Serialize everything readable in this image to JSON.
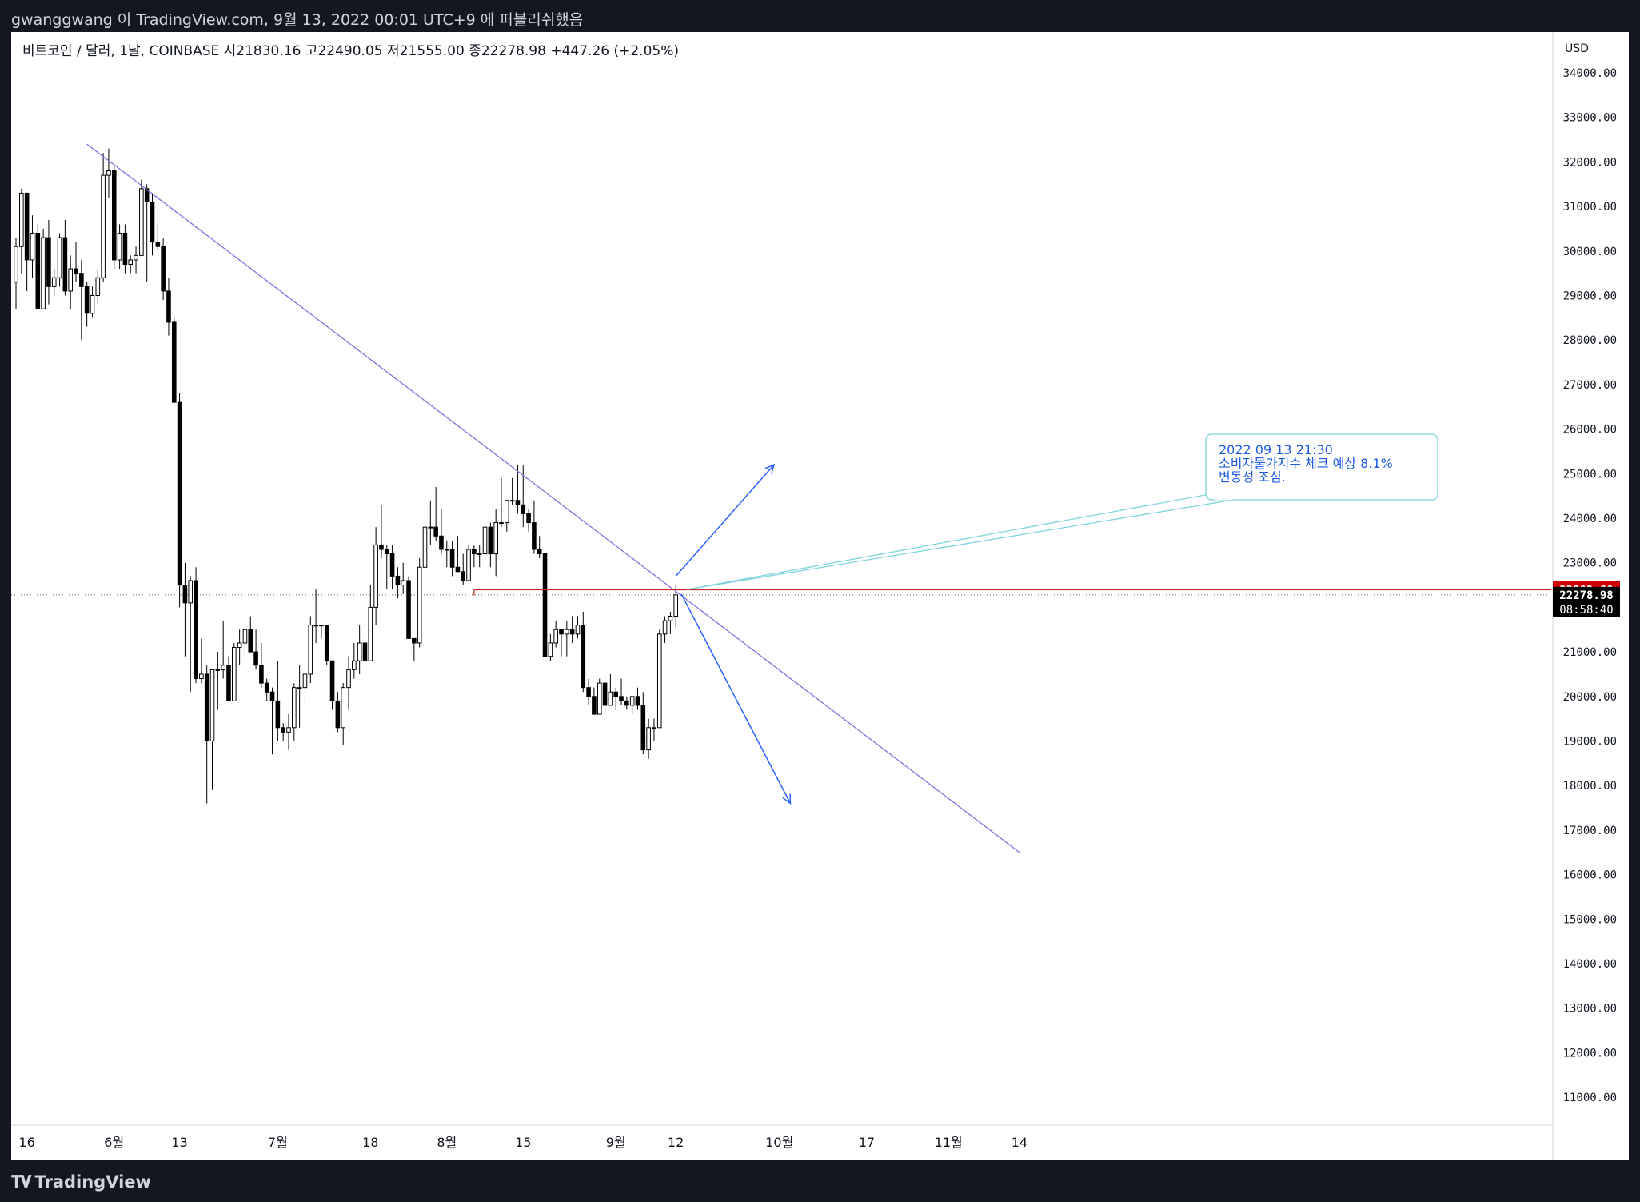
{
  "publisher_line": "gwanggwang 이 TradingView.com, 9월 13, 2022 00:01 UTC+9 에 퍼블리쉬했음",
  "footer_logo": "TradingView",
  "chart_data": {
    "type": "candlestick",
    "symbol_line": {
      "instrument": "비트코인 / 달러, 1날, COINBASE",
      "open_label": "시",
      "open": "21830.16",
      "high_label": "고",
      "high": "22490.05",
      "low_label": "저",
      "low": "21555.00",
      "close_label": "종",
      "close": "22278.98",
      "change": "+447.26 (+2.05%)"
    },
    "currency": "USD",
    "ylim": [
      10000,
      35000
    ],
    "y_ticks": [
      34000,
      33000,
      32000,
      31000,
      30000,
      29000,
      28000,
      27000,
      26000,
      25000,
      24000,
      23000,
      22000,
      21000,
      20000,
      19000,
      18000,
      17000,
      16000,
      15000,
      14000,
      13000,
      12000,
      11000
    ],
    "y_tick_labels": [
      "34000.00",
      "33000.00",
      "32000.00",
      "31000.00",
      "30000.00",
      "29000.00",
      "28000.00",
      "27000.00",
      "26000.00",
      "25000.00",
      "24000.00",
      "23000.00",
      "22000.00",
      "21000.00",
      "20000.00",
      "19000.00",
      "18000.00",
      "17000.00",
      "16000.00",
      "15000.00",
      "14000.00",
      "13000.00",
      "12000.00",
      "11000.00"
    ],
    "x_ticks": [
      {
        "label": "16",
        "date": "2022-05-16"
      },
      {
        "label": "6월",
        "date": "2022-06-01"
      },
      {
        "label": "13",
        "date": "2022-06-13"
      },
      {
        "label": "7월",
        "date": "2022-07-01"
      },
      {
        "label": "18",
        "date": "2022-07-18"
      },
      {
        "label": "8월",
        "date": "2022-08-01"
      },
      {
        "label": "15",
        "date": "2022-08-15"
      },
      {
        "label": "9월",
        "date": "2022-09-01"
      },
      {
        "label": "12",
        "date": "2022-09-12"
      },
      {
        "label": "10월",
        "date": "2022-10-01"
      },
      {
        "label": "17",
        "date": "2022-10-17"
      },
      {
        "label": "11월",
        "date": "2022-11-01"
      },
      {
        "label": "14",
        "date": "2022-11-14"
      }
    ],
    "ohlc": [
      [
        "2022-05-14",
        29300,
        30300,
        28700,
        30100
      ],
      [
        "2022-05-15",
        30100,
        31400,
        29500,
        31300
      ],
      [
        "2022-05-16",
        31300,
        31300,
        29100,
        29800
      ],
      [
        "2022-05-17",
        29800,
        30800,
        29400,
        30400
      ],
      [
        "2022-05-18",
        30400,
        30600,
        28700,
        28700
      ],
      [
        "2022-05-19",
        28700,
        30500,
        28700,
        30300
      ],
      [
        "2022-05-20",
        30300,
        30700,
        28800,
        29200
      ],
      [
        "2022-05-21",
        29200,
        29600,
        29000,
        29400
      ],
      [
        "2022-05-22",
        29400,
        30400,
        29200,
        30300
      ],
      [
        "2022-05-23",
        30300,
        30700,
        29000,
        29100
      ],
      [
        "2022-05-24",
        29100,
        29900,
        28700,
        29600
      ],
      [
        "2022-05-25",
        29600,
        30200,
        29300,
        29500
      ],
      [
        "2022-05-26",
        29500,
        29800,
        28000,
        29200
      ],
      [
        "2022-05-27",
        29200,
        29300,
        28300,
        28600
      ],
      [
        "2022-05-28",
        28600,
        29200,
        28500,
        29000
      ],
      [
        "2022-05-29",
        29000,
        29600,
        28800,
        29400
      ],
      [
        "2022-05-30",
        29400,
        32200,
        29300,
        31700
      ],
      [
        "2022-05-31",
        31700,
        32300,
        31200,
        31800
      ],
      [
        "2022-06-01",
        31800,
        31900,
        29600,
        29800
      ],
      [
        "2022-06-02",
        29800,
        30600,
        29600,
        30400
      ],
      [
        "2022-06-03",
        30400,
        30600,
        29500,
        29700
      ],
      [
        "2022-06-04",
        29700,
        29900,
        29500,
        29800
      ],
      [
        "2022-06-05",
        29800,
        30100,
        29500,
        29900
      ],
      [
        "2022-06-06",
        29900,
        31600,
        29900,
        31400
      ],
      [
        "2022-06-07",
        31400,
        31500,
        29300,
        31100
      ],
      [
        "2022-06-08",
        31100,
        31300,
        29900,
        30200
      ],
      [
        "2022-06-09",
        30200,
        30600,
        30000,
        30100
      ],
      [
        "2022-06-10",
        30100,
        30300,
        28900,
        29100
      ],
      [
        "2022-06-11",
        29100,
        29400,
        28100,
        28400
      ],
      [
        "2022-06-12",
        28400,
        28500,
        26600,
        26600
      ],
      [
        "2022-06-13",
        26600,
        26800,
        22000,
        22500
      ],
      [
        "2022-06-14",
        22500,
        23000,
        20900,
        22100
      ],
      [
        "2022-06-15",
        22100,
        22700,
        20100,
        22600
      ],
      [
        "2022-06-16",
        22600,
        22900,
        20300,
        20400
      ],
      [
        "2022-06-17",
        20400,
        21300,
        20300,
        20500
      ],
      [
        "2022-06-18",
        20500,
        20700,
        17600,
        19000
      ],
      [
        "2022-06-19",
        19000,
        20600,
        17900,
        20600
      ],
      [
        "2022-06-20",
        20600,
        21000,
        19700,
        20600
      ],
      [
        "2022-06-21",
        20600,
        21700,
        20400,
        20700
      ],
      [
        "2022-06-22",
        20700,
        20900,
        19900,
        19900
      ],
      [
        "2022-06-23",
        19900,
        21200,
        19900,
        21100
      ],
      [
        "2022-06-24",
        21100,
        21500,
        20700,
        21200
      ],
      [
        "2022-06-25",
        21200,
        21600,
        20900,
        21500
      ],
      [
        "2022-06-26",
        21500,
        21800,
        21000,
        21000
      ],
      [
        "2022-06-27",
        21000,
        21500,
        20600,
        20700
      ],
      [
        "2022-06-28",
        20700,
        21200,
        20200,
        20300
      ],
      [
        "2022-06-29",
        20300,
        20400,
        19900,
        20100
      ],
      [
        "2022-06-30",
        20100,
        20200,
        18700,
        19900
      ],
      [
        "2022-07-01",
        19900,
        20800,
        19000,
        19300
      ],
      [
        "2022-07-02",
        19300,
        19400,
        19000,
        19200
      ],
      [
        "2022-07-03",
        19200,
        19600,
        18800,
        19300
      ],
      [
        "2022-07-04",
        19300,
        20300,
        19000,
        20200
      ],
      [
        "2022-07-05",
        20200,
        20700,
        19300,
        20200
      ],
      [
        "2022-07-06",
        20200,
        20600,
        19800,
        20500
      ],
      [
        "2022-07-07",
        20500,
        21800,
        20300,
        21600
      ],
      [
        "2022-07-08",
        21600,
        22400,
        21200,
        21600
      ],
      [
        "2022-07-09",
        21600,
        21600,
        21300,
        21600
      ],
      [
        "2022-07-10",
        21600,
        21600,
        20700,
        20800
      ],
      [
        "2022-07-11",
        20800,
        20800,
        19700,
        19900
      ],
      [
        "2022-07-12",
        19900,
        20100,
        19200,
        19300
      ],
      [
        "2022-07-13",
        19300,
        20300,
        18900,
        20200
      ],
      [
        "2022-07-14",
        20200,
        20900,
        19700,
        20600
      ],
      [
        "2022-07-15",
        20600,
        21200,
        20400,
        20800
      ],
      [
        "2022-07-16",
        20800,
        21600,
        20500,
        21200
      ],
      [
        "2022-07-17",
        21200,
        21700,
        20700,
        20800
      ],
      [
        "2022-07-18",
        20800,
        22500,
        20800,
        22000
      ],
      [
        "2022-07-19",
        22000,
        23800,
        21600,
        23400
      ],
      [
        "2022-07-20",
        23400,
        24300,
        23100,
        23300
      ],
      [
        "2022-07-21",
        23300,
        23400,
        22400,
        23200
      ],
      [
        "2022-07-22",
        23200,
        23400,
        22400,
        22700
      ],
      [
        "2022-07-23",
        22700,
        22900,
        22200,
        22500
      ],
      [
        "2022-07-24",
        22500,
        23000,
        22300,
        22600
      ],
      [
        "2022-07-25",
        22600,
        22700,
        21300,
        21300
      ],
      [
        "2022-07-26",
        21300,
        21300,
        20800,
        21200
      ],
      [
        "2022-07-27",
        21200,
        23100,
        21100,
        22900
      ],
      [
        "2022-07-28",
        22900,
        24200,
        22600,
        23800
      ],
      [
        "2022-07-29",
        23800,
        24400,
        23400,
        23800
      ],
      [
        "2022-07-30",
        23800,
        24700,
        23500,
        23600
      ],
      [
        "2022-07-31",
        23600,
        24200,
        23200,
        23300
      ],
      [
        "2022-08-01",
        23300,
        23500,
        22900,
        23300
      ],
      [
        "2022-08-02",
        23300,
        23500,
        22700,
        22900
      ],
      [
        "2022-08-03",
        22900,
        23600,
        22800,
        22800
      ],
      [
        "2022-08-04",
        22800,
        23200,
        22500,
        22600
      ],
      [
        "2022-08-05",
        22600,
        23400,
        22600,
        23300
      ],
      [
        "2022-08-06",
        23300,
        23400,
        22900,
        23200
      ],
      [
        "2022-08-07",
        23200,
        23400,
        22900,
        23200
      ],
      [
        "2022-08-08",
        23200,
        24200,
        23200,
        23800
      ],
      [
        "2022-08-09",
        23800,
        23900,
        22900,
        23200
      ],
      [
        "2022-08-10",
        23200,
        24200,
        22700,
        23900
      ],
      [
        "2022-08-11",
        23900,
        24900,
        23800,
        23900
      ],
      [
        "2022-08-12",
        23900,
        24400,
        23700,
        24400
      ],
      [
        "2022-08-13",
        24400,
        24900,
        24300,
        24400
      ],
      [
        "2022-08-14",
        24400,
        25200,
        24100,
        24300
      ],
      [
        "2022-08-15",
        24300,
        25200,
        23800,
        24100
      ],
      [
        "2022-08-16",
        24100,
        24200,
        23700,
        23900
      ],
      [
        "2022-08-17",
        23900,
        24400,
        23200,
        23300
      ],
      [
        "2022-08-18",
        23300,
        23600,
        23100,
        23200
      ],
      [
        "2022-08-19",
        23200,
        23200,
        20800,
        20900
      ],
      [
        "2022-08-20",
        20900,
        21400,
        20800,
        21200
      ],
      [
        "2022-08-21",
        21200,
        21700,
        21100,
        21500
      ],
      [
        "2022-08-22",
        21500,
        21500,
        20900,
        21400
      ],
      [
        "2022-08-23",
        21400,
        21700,
        20900,
        21500
      ],
      [
        "2022-08-24",
        21500,
        21800,
        21200,
        21400
      ],
      [
        "2022-08-25",
        21400,
        21800,
        21300,
        21600
      ],
      [
        "2022-08-26",
        21600,
        21900,
        20100,
        20200
      ],
      [
        "2022-08-27",
        20200,
        20400,
        19800,
        20000
      ],
      [
        "2022-08-28",
        20000,
        20200,
        19600,
        19600
      ],
      [
        "2022-08-29",
        19600,
        20400,
        19600,
        20300
      ],
      [
        "2022-08-30",
        20300,
        20600,
        19600,
        19800
      ],
      [
        "2022-08-31",
        19800,
        20500,
        19800,
        20100
      ],
      [
        "2022-09-01",
        20100,
        20200,
        19700,
        20000
      ],
      [
        "2022-09-02",
        20000,
        20400,
        19800,
        19900
      ],
      [
        "2022-09-03",
        19900,
        20000,
        19700,
        19800
      ],
      [
        "2022-09-04",
        19800,
        20000,
        19600,
        20000
      ],
      [
        "2022-09-05",
        20000,
        20200,
        19700,
        19800
      ],
      [
        "2022-09-06",
        19800,
        20100,
        18700,
        18800
      ],
      [
        "2022-09-07",
        18800,
        19500,
        18600,
        19300
      ],
      [
        "2022-09-08",
        19300,
        19500,
        19000,
        19300
      ],
      [
        "2022-09-09",
        19300,
        21500,
        19300,
        21400
      ],
      [
        "2022-09-10",
        21400,
        21800,
        21200,
        21700
      ],
      [
        "2022-09-11",
        21700,
        21900,
        21400,
        21800
      ],
      [
        "2022-09-12",
        21800,
        22500,
        21550,
        22280
      ]
    ],
    "trendline": {
      "start": {
        "date": "2022-05-27",
        "value": 32400
      },
      "end": {
        "date": "2022-11-14",
        "value": 16500
      }
    },
    "horizontal_line": {
      "start_date": "2022-08-06",
      "value": 22392.88
    },
    "arrows": [
      {
        "from": {
          "date": "2022-09-12",
          "value": 22700
        },
        "to": {
          "date": "2022-09-30",
          "value": 25200
        }
      },
      {
        "from": {
          "date": "2022-09-13",
          "value": 22300
        },
        "to": {
          "date": "2022-10-03",
          "value": 17600
        }
      }
    ],
    "callout": {
      "lines": [
        "2022 09 13  21:30",
        "소비자물가지수  체크 예상 8.1%",
        "변동성 조심."
      ],
      "anchor": {
        "date": "2022-09-14",
        "value": 22400
      }
    },
    "price_labels": {
      "line_price": "22392.88",
      "last_price": "22278.98",
      "countdown": "08:58:40"
    },
    "last_value": 22278.98,
    "colors": {
      "up": "#ffffff",
      "down": "#000000",
      "trend": "#8a6ddc",
      "hline": "#c62828",
      "arrow": "#2962ff",
      "callout_border": "#7fd3dd",
      "callout_text": "#1e5be0",
      "last_price_bg": "#000000",
      "line_price_bg": "#cc0000"
    }
  }
}
